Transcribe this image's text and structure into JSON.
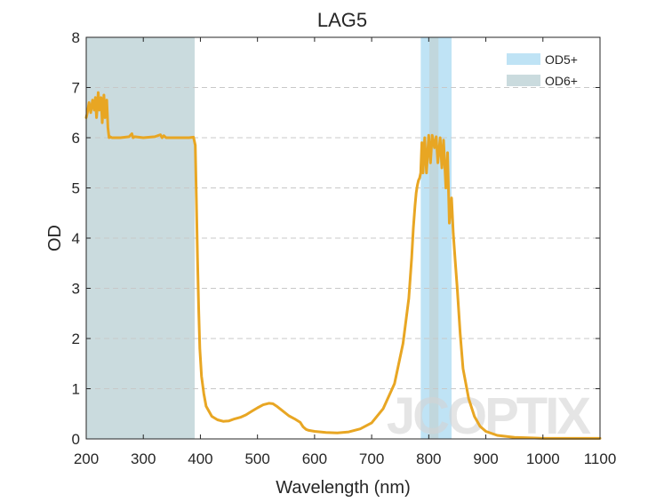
{
  "chart_data": {
    "type": "line",
    "title": "LAG5",
    "xlabel": "Wavelength (nm)",
    "ylabel": "OD",
    "xlim": [
      200,
      1100
    ],
    "ylim": [
      0,
      8
    ],
    "xticks": [
      200,
      300,
      400,
      500,
      600,
      700,
      800,
      900,
      1000,
      1100
    ],
    "yticks": [
      0,
      1,
      2,
      3,
      4,
      5,
      6,
      7,
      8
    ],
    "grid": "horizontal dashed",
    "legend_position": "top-right",
    "bands": [
      {
        "name": "OD5+",
        "x": [
          786,
          840
        ],
        "color": "#bfe3f5"
      },
      {
        "name": "OD6+",
        "x": [
          200,
          390
        ],
        "color": "#cadbde"
      }
    ],
    "overlap_band": {
      "x": [
        801,
        817
      ],
      "color": "#c1d7dd"
    },
    "watermark": "JCOPTIX",
    "series": [
      {
        "color": "#e8a623",
        "x": [
          200,
          202,
          205,
          208,
          211,
          214,
          216,
          218,
          221,
          223,
          226,
          228,
          231,
          233,
          236,
          238,
          240,
          242,
          245,
          250,
          260,
          275,
          280,
          282,
          285,
          300,
          320,
          330,
          333,
          336,
          340,
          360,
          380,
          388,
          391,
          393,
          395,
          397,
          399,
          402,
          406,
          410,
          420,
          430,
          440,
          450,
          460,
          470,
          480,
          490,
          500,
          510,
          520,
          527,
          535,
          545,
          555,
          565,
          575,
          580,
          585,
          590,
          600,
          620,
          640,
          660,
          680,
          700,
          720,
          740,
          755,
          765,
          770,
          773,
          776,
          778,
          780,
          782,
          784,
          786,
          788,
          790,
          793,
          796,
          800,
          803,
          806,
          810,
          813,
          816,
          820,
          823,
          826,
          830,
          833,
          836,
          840,
          843,
          846,
          850,
          855,
          860,
          870,
          880,
          890,
          900,
          920,
          950,
          980,
          1000,
          1050,
          1100
        ],
        "values": [
          6.4,
          6.5,
          6.7,
          6.5,
          6.75,
          6.55,
          6.8,
          6.4,
          6.9,
          6.55,
          6.8,
          6.3,
          6.85,
          6.4,
          6.75,
          6.2,
          6.0,
          6.02,
          6.0,
          6.0,
          6.0,
          6.02,
          6.08,
          6.0,
          6.02,
          6.0,
          6.02,
          6.06,
          6.0,
          6.04,
          6.0,
          6.0,
          6.0,
          6.01,
          5.85,
          4.8,
          3.6,
          2.6,
          1.8,
          1.25,
          0.9,
          0.65,
          0.45,
          0.38,
          0.35,
          0.36,
          0.4,
          0.43,
          0.48,
          0.55,
          0.62,
          0.68,
          0.71,
          0.7,
          0.64,
          0.55,
          0.46,
          0.4,
          0.33,
          0.24,
          0.19,
          0.17,
          0.15,
          0.13,
          0.12,
          0.14,
          0.2,
          0.32,
          0.6,
          1.1,
          1.9,
          2.8,
          3.6,
          4.2,
          4.65,
          4.9,
          5.05,
          5.15,
          5.2,
          5.3,
          5.9,
          5.3,
          6.0,
          5.3,
          6.05,
          5.5,
          6.05,
          5.8,
          6.02,
          5.5,
          6.0,
          5.4,
          5.95,
          5.0,
          5.7,
          4.3,
          4.8,
          4.1,
          3.6,
          3.0,
          2.1,
          1.4,
          0.8,
          0.45,
          0.25,
          0.15,
          0.07,
          0.03,
          0.02,
          0.01,
          0.01,
          0.01
        ]
      }
    ]
  }
}
